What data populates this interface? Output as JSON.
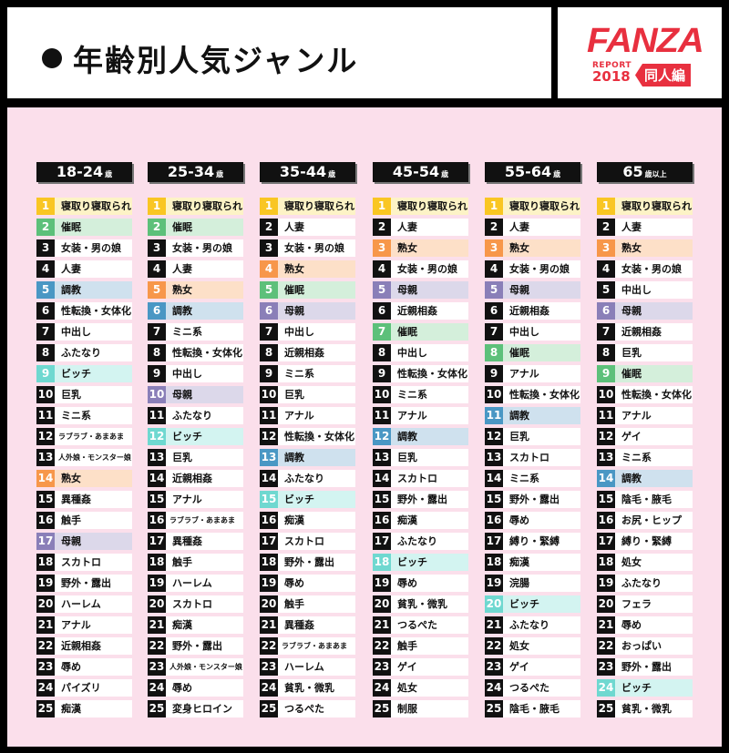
{
  "header": {
    "title": "年齢別人気ジャンル"
  },
  "logo": {
    "brand": "FANZA",
    "report": "REPORT",
    "year": "2018",
    "edition": "同人編"
  },
  "highlight_colors": {
    "寝取り寝取られ": {
      "num": "#f9c623",
      "bg": "#fdf3c6"
    },
    "催眠": {
      "num": "#5dc07a",
      "bg": "#d4efdb"
    },
    "調教": {
      "num": "#4a97c4",
      "bg": "#cfe1ee"
    },
    "熟女": {
      "num": "#f7974a",
      "bg": "#fde0c8"
    },
    "ビッチ": {
      "num": "#6fd8d0",
      "bg": "#d3f4f1"
    },
    "母親": {
      "num": "#8a7fb8",
      "bg": "#dcd8ea"
    }
  },
  "columns": [
    {
      "age": "18-24",
      "suffix": "歳",
      "genres": [
        "寝取り寝取られ",
        "催眠",
        "女装・男の娘",
        "人妻",
        "調教",
        "性転換・女体化",
        "中出し",
        "ふたなり",
        "ビッチ",
        "巨乳",
        "ミニ系",
        "ラブラブ・あまあま",
        "人外娘・モンスター娘",
        "熟女",
        "異種姦",
        "触手",
        "母親",
        "スカトロ",
        "野外・露出",
        "ハーレム",
        "アナル",
        "近親相姦",
        "辱め",
        "パイズリ",
        "痴漢"
      ]
    },
    {
      "age": "25-34",
      "suffix": "歳",
      "genres": [
        "寝取り寝取られ",
        "催眠",
        "女装・男の娘",
        "人妻",
        "熟女",
        "調教",
        "ミニ系",
        "性転換・女体化",
        "中出し",
        "母親",
        "ふたなり",
        "ビッチ",
        "巨乳",
        "近親相姦",
        "アナル",
        "ラブラブ・あまあま",
        "異種姦",
        "触手",
        "ハーレム",
        "スカトロ",
        "痴漢",
        "野外・露出",
        "人外娘・モンスター娘",
        "辱め",
        "変身ヒロイン"
      ]
    },
    {
      "age": "35-44",
      "suffix": "歳",
      "genres": [
        "寝取り寝取られ",
        "人妻",
        "女装・男の娘",
        "熟女",
        "催眠",
        "母親",
        "中出し",
        "近親相姦",
        "ミニ系",
        "巨乳",
        "アナル",
        "性転換・女体化",
        "調教",
        "ふたなり",
        "ビッチ",
        "痴漢",
        "スカトロ",
        "野外・露出",
        "辱め",
        "触手",
        "異種姦",
        "ラブラブ・あまあま",
        "ハーレム",
        "貧乳・微乳",
        "つるぺた"
      ]
    },
    {
      "age": "45-54",
      "suffix": "歳",
      "genres": [
        "寝取り寝取られ",
        "人妻",
        "熟女",
        "女装・男の娘",
        "母親",
        "近親相姦",
        "催眠",
        "中出し",
        "性転換・女体化",
        "ミニ系",
        "アナル",
        "調教",
        "巨乳",
        "スカトロ",
        "野外・露出",
        "痴漢",
        "ふたなり",
        "ビッチ",
        "辱め",
        "貧乳・微乳",
        "つるぺた",
        "触手",
        "ゲイ",
        "処女",
        "制服"
      ]
    },
    {
      "age": "55-64",
      "suffix": "歳",
      "genres": [
        "寝取り寝取られ",
        "人妻",
        "熟女",
        "女装・男の娘",
        "母親",
        "近親相姦",
        "中出し",
        "催眠",
        "アナル",
        "性転換・女体化",
        "調教",
        "巨乳",
        "スカトロ",
        "ミニ系",
        "野外・露出",
        "辱め",
        "縛り・緊縛",
        "痴漢",
        "浣腸",
        "ビッチ",
        "ふたなり",
        "処女",
        "ゲイ",
        "つるぺた",
        "陰毛・腋毛"
      ]
    },
    {
      "age": "65",
      "suffix": "歳以上",
      "genres": [
        "寝取り寝取られ",
        "人妻",
        "熟女",
        "女装・男の娘",
        "中出し",
        "母親",
        "近親相姦",
        "巨乳",
        "催眠",
        "性転換・女体化",
        "アナル",
        "ゲイ",
        "ミニ系",
        "調教",
        "陰毛・腋毛",
        "お尻・ヒップ",
        "縛り・緊縛",
        "処女",
        "ふたなり",
        "フェラ",
        "辱め",
        "おっぱい",
        "野外・露出",
        "ビッチ",
        "貧乳・微乳"
      ]
    }
  ]
}
